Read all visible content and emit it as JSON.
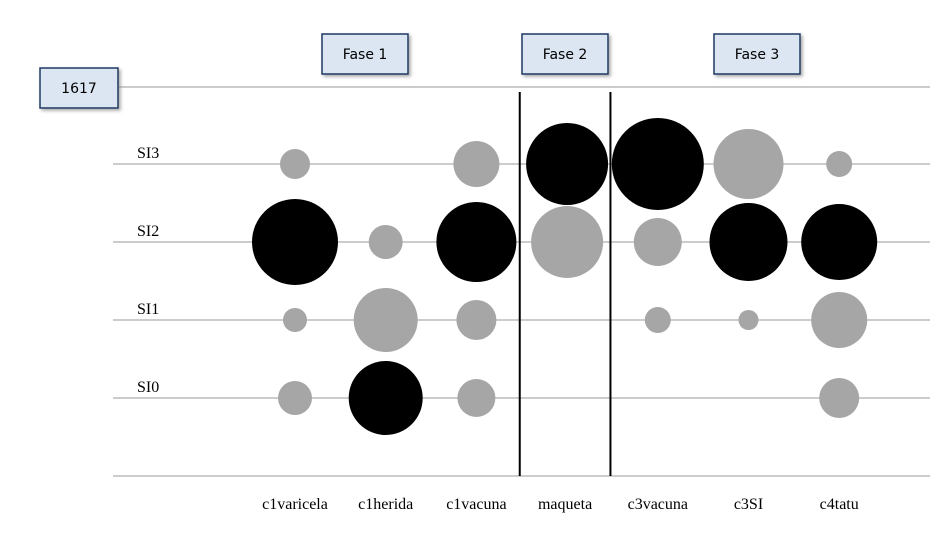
{
  "chart_data": {
    "type": "bubble",
    "id_label": "1617",
    "phases": [
      "Fase 1",
      "Fase 2",
      "Fase 3"
    ],
    "categories": [
      "c1varicela",
      "c1herida",
      "c1vacuna",
      "maqueta",
      "c3vacuna",
      "c3SI",
      "c4tatu"
    ],
    "y_categories": [
      "SI0",
      "SI1",
      "SI2",
      "SI3"
    ],
    "sizes": [
      [
        34,
        24,
        86,
        30
      ],
      [
        74,
        64,
        34,
        null
      ],
      [
        38,
        40,
        80,
        46
      ],
      [
        null,
        null,
        72,
        82
      ],
      [
        null,
        26,
        48,
        92
      ],
      [
        null,
        20,
        78,
        70
      ],
      [
        40,
        56,
        76,
        26
      ]
    ],
    "colors": [
      [
        "#a6a6a6",
        "#a6a6a6",
        "#000000",
        "#a6a6a6"
      ],
      [
        "#000000",
        "#a6a6a6",
        "#a6a6a6",
        null
      ],
      [
        "#a6a6a6",
        "#a6a6a6",
        "#000000",
        "#a6a6a6"
      ],
      [
        null,
        null,
        "#a6a6a6",
        "#000000"
      ],
      [
        null,
        "#a6a6a6",
        "#a6a6a6",
        "#000000"
      ],
      [
        null,
        "#a6a6a6",
        "#000000",
        "#a6a6a6"
      ],
      [
        "#a6a6a6",
        "#a6a6a6",
        "#000000",
        "#a6a6a6"
      ]
    ]
  }
}
